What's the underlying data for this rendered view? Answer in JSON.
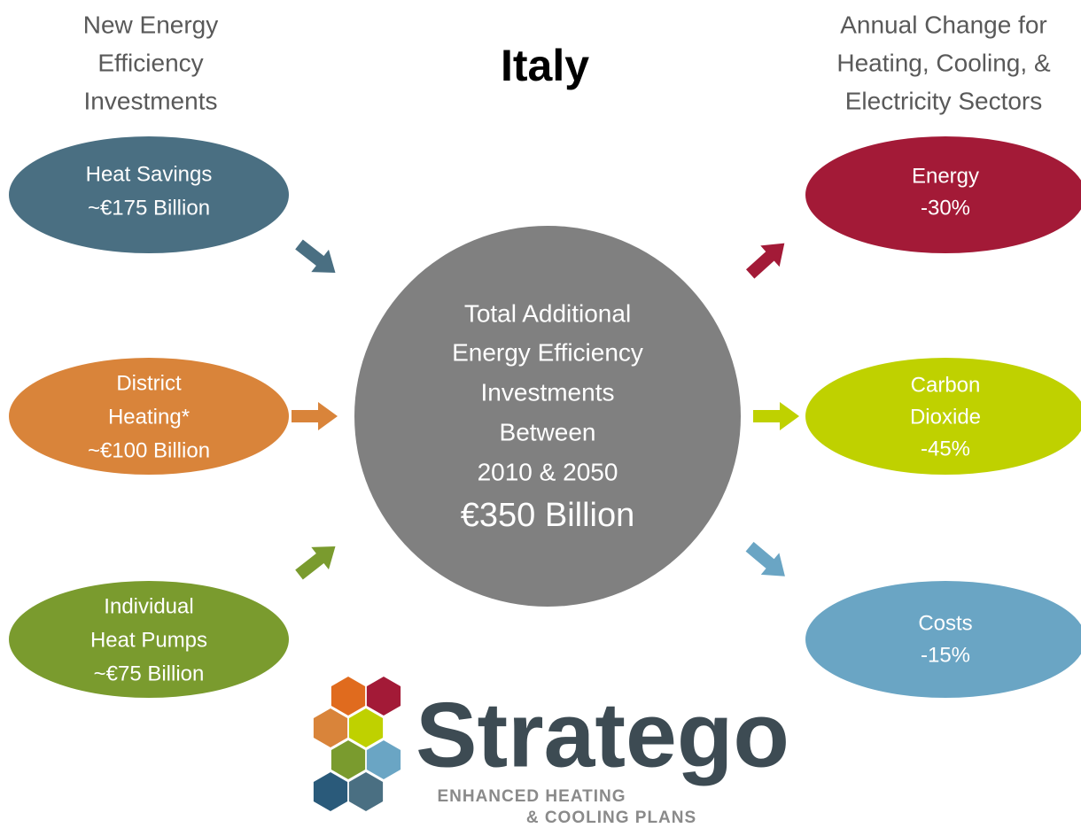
{
  "title": "Italy",
  "left_header": [
    "New Energy",
    "Efficiency",
    "Investments"
  ],
  "right_header": [
    "Annual Change for",
    "Heating, Cooling, &",
    "Electricity Sectors"
  ],
  "inputs": [
    {
      "lines": [
        "Heat Savings",
        "~€175 Billion"
      ]
    },
    {
      "lines": [
        "District",
        "Heating*",
        "~€100 Billion"
      ]
    },
    {
      "lines": [
        "Individual",
        "Heat Pumps",
        "~€75 Billion"
      ]
    }
  ],
  "center": {
    "lines": [
      "Total Additional",
      "Energy Efficiency",
      "Investments",
      "Between",
      "2010 & 2050"
    ],
    "amount": "€350 Billion"
  },
  "outputs": [
    {
      "lines": [
        "Energy",
        "-30%"
      ]
    },
    {
      "lines": [
        "Carbon",
        "Dioxide",
        "-45%"
      ]
    },
    {
      "lines": [
        "Costs",
        "-15%"
      ]
    }
  ],
  "logo": {
    "name": "Stratego",
    "tagline": [
      "ENHANCED HEATING",
      "& COOLING PLANS"
    ]
  }
}
